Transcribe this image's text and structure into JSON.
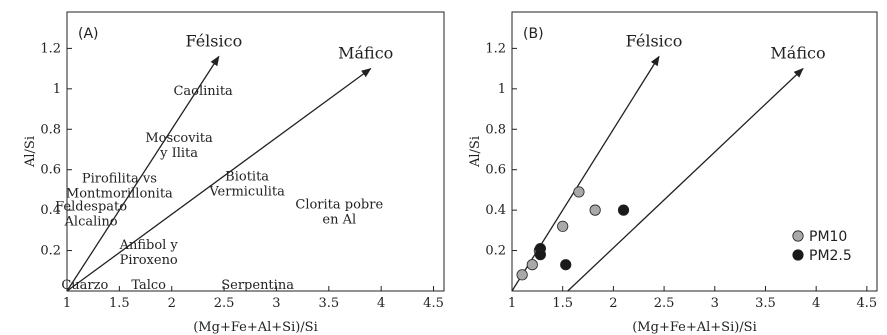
{
  "chart_data": [
    {
      "type": "scatter",
      "panel_label": "(A)",
      "xlabel": "(Mg+Fe+Al+Si)/Si",
      "ylabel": "Al/Si",
      "xlim": [
        1,
        4.6
      ],
      "ylim": [
        0,
        1.38
      ],
      "xticks": [
        1,
        1.5,
        2,
        2.5,
        3,
        3.5,
        4,
        4.5
      ],
      "xtick_labels": [
        "1",
        "1.5",
        "2",
        "2.5",
        "3",
        "3.5",
        "4",
        "4.5"
      ],
      "yticks": [
        0.2,
        0.4,
        0.6,
        0.8,
        1,
        1.2
      ],
      "ytick_labels": [
        "0.2",
        "0.4",
        "0.6",
        "0.8",
        "1",
        "1.2"
      ],
      "grid": false,
      "arrows": [
        {
          "label": "Félsico",
          "from": [
            1,
            0
          ],
          "to": [
            2.45,
            1.16
          ]
        },
        {
          "label": "Máfico",
          "from": [
            1,
            0
          ],
          "to": [
            3.9,
            1.1
          ]
        }
      ],
      "annotations": [
        {
          "lines": [
            "Caolinita"
          ],
          "x": 2.3,
          "y": 0.97
        },
        {
          "lines": [
            "Moscovita",
            "y Ilita"
          ],
          "x": 2.07,
          "y": 0.7
        },
        {
          "lines": [
            "Pirofilita vs",
            "Montmorillonita"
          ],
          "x": 1.5,
          "y": 0.5
        },
        {
          "lines": [
            "Feldespato",
            "Alcalino"
          ],
          "x": 1.23,
          "y": 0.36
        },
        {
          "lines": [
            "Biotita",
            "Vermiculita"
          ],
          "x": 2.72,
          "y": 0.51
        },
        {
          "lines": [
            "Clorita pobre",
            "en Al"
          ],
          "x": 3.6,
          "y": 0.37
        },
        {
          "lines": [
            "Anfibol y",
            "Piroxeno"
          ],
          "x": 1.78,
          "y": 0.17
        },
        {
          "lines": [
            "Cuarzo"
          ],
          "x": 1.17,
          "y": 0.0
        },
        {
          "lines": [
            "Talco"
          ],
          "x": 1.78,
          "y": 0.0
        },
        {
          "lines": [
            "Serpentina"
          ],
          "x": 2.82,
          "y": 0.0
        }
      ]
    },
    {
      "type": "scatter",
      "panel_label": "(B)",
      "xlabel": "(Mg+Fe+Al+Si)/Si",
      "ylabel": "Al/Si",
      "xlim": [
        1,
        4.6
      ],
      "ylim": [
        0,
        1.38
      ],
      "xticks": [
        1,
        1.5,
        2,
        2.5,
        3,
        3.5,
        4,
        4.5
      ],
      "xtick_labels": [
        "1",
        "1.5",
        "2",
        "2.5",
        "3",
        "3.5",
        "4",
        "4.5"
      ],
      "yticks": [
        0.2,
        0.4,
        0.6,
        0.8,
        1,
        1.2
      ],
      "ytick_labels": [
        "0.2",
        "0.4",
        "0.6",
        "0.8",
        "1",
        "1.2"
      ],
      "grid": false,
      "legend_position": "bottom-right",
      "arrows": [
        {
          "label": "Félsico",
          "from": [
            1,
            0
          ],
          "to": [
            2.45,
            1.16
          ]
        },
        {
          "label": "Máfico",
          "from": [
            1.55,
            0
          ],
          "to": [
            3.87,
            1.1
          ]
        }
      ],
      "series": [
        {
          "name": "PM10",
          "color": "#a9a9a9",
          "x": [
            1.1,
            1.2,
            1.27,
            1.5,
            1.66,
            1.82
          ],
          "y": [
            0.08,
            0.13,
            0.2,
            0.32,
            0.49,
            0.4
          ]
        },
        {
          "name": "PM2.5",
          "color": "#1a1a1a",
          "x": [
            1.28,
            1.28,
            1.53,
            2.1
          ],
          "y": [
            0.21,
            0.18,
            0.13,
            0.4
          ]
        }
      ]
    }
  ]
}
